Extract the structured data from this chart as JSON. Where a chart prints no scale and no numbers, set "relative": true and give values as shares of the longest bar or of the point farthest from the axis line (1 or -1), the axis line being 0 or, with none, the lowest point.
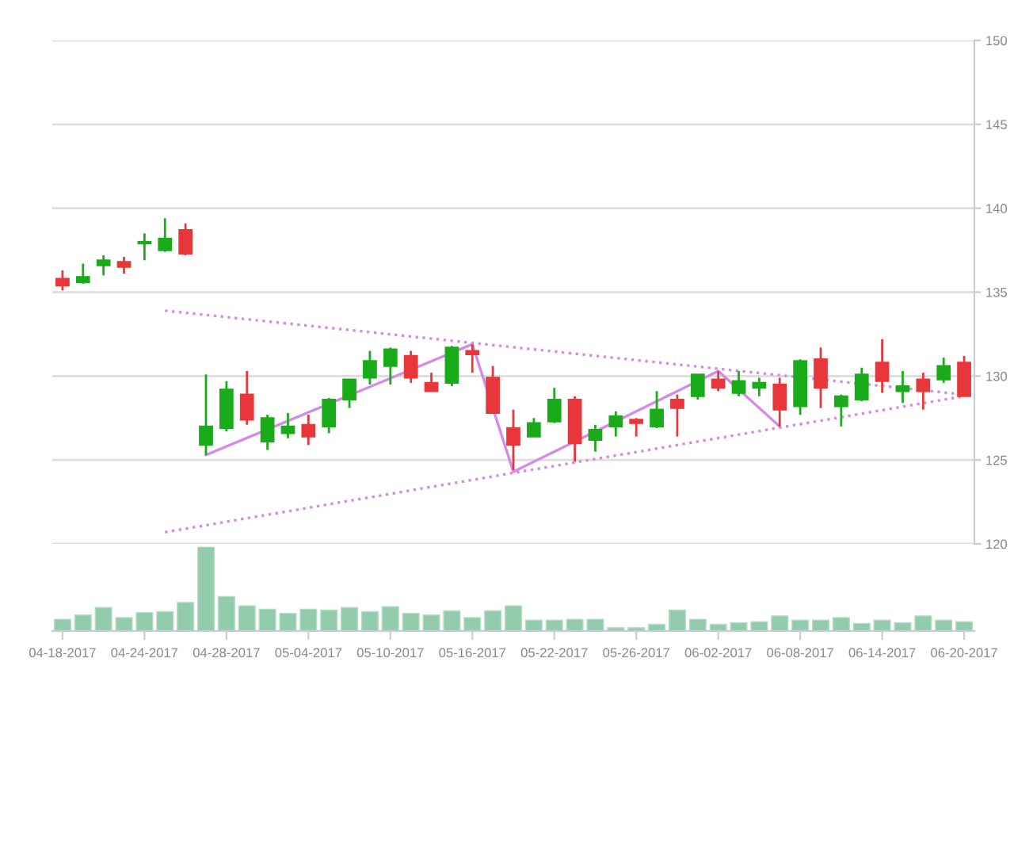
{
  "chart_data": [
    {
      "type": "candlestick",
      "categories": [
        null,
        null,
        null,
        null,
        null,
        null,
        null,
        null,
        null,
        null,
        null,
        null,
        null,
        null,
        null,
        null,
        null,
        null,
        null,
        null,
        null,
        null,
        null,
        null,
        null,
        null,
        null,
        null,
        null,
        null,
        null,
        null,
        null,
        null,
        null,
        null,
        null,
        null,
        null,
        null,
        null,
        null,
        null,
        null,
        null
      ],
      "ohlc": [
        [
          135.8,
          136.3,
          135.1,
          135.4
        ],
        [
          135.6,
          136.7,
          135.5,
          135.9
        ],
        [
          136.6,
          137.2,
          136.0,
          136.9
        ],
        [
          136.8,
          137.1,
          136.1,
          136.5
        ],
        [
          137.9,
          138.5,
          136.9,
          138.0
        ],
        [
          137.5,
          139.4,
          137.4,
          138.2
        ],
        [
          138.7,
          139.1,
          137.2,
          137.3
        ],
        [
          125.9,
          130.1,
          125.3,
          127.0
        ],
        [
          126.9,
          129.7,
          126.7,
          129.2
        ],
        [
          128.9,
          130.3,
          127.1,
          127.4
        ],
        [
          126.1,
          127.7,
          125.6,
          127.5
        ],
        [
          126.6,
          127.8,
          126.3,
          127.0
        ],
        [
          127.1,
          127.7,
          125.9,
          126.4
        ],
        [
          127.0,
          128.7,
          126.6,
          128.6
        ],
        [
          128.6,
          129.8,
          128.1,
          129.8
        ],
        [
          129.9,
          131.5,
          129.5,
          130.9
        ],
        [
          130.6,
          131.7,
          129.5,
          131.6
        ],
        [
          131.2,
          131.5,
          129.6,
          129.9
        ],
        [
          129.6,
          130.2,
          129.1,
          129.1
        ],
        [
          129.6,
          131.8,
          129.4,
          131.7
        ],
        [
          131.5,
          131.9,
          130.2,
          131.3
        ],
        [
          129.9,
          130.6,
          127.8,
          127.8
        ],
        [
          126.9,
          128.0,
          124.4,
          125.9
        ],
        [
          126.4,
          127.5,
          126.4,
          127.2
        ],
        [
          127.3,
          129.3,
          127.2,
          128.6
        ],
        [
          128.6,
          128.8,
          124.9,
          126.0
        ],
        [
          126.2,
          127.1,
          125.5,
          126.8
        ],
        [
          127.0,
          127.9,
          126.4,
          127.6
        ],
        [
          127.4,
          127.5,
          126.4,
          127.2
        ],
        [
          127.0,
          129.1,
          126.9,
          128.0
        ],
        [
          128.6,
          128.9,
          126.4,
          128.1
        ],
        [
          128.8,
          130.1,
          128.6,
          130.1
        ],
        [
          129.8,
          130.3,
          129.1,
          129.3
        ],
        [
          129.0,
          130.3,
          128.8,
          129.7
        ],
        [
          129.3,
          129.9,
          128.8,
          129.6
        ],
        [
          129.5,
          129.9,
          127.0,
          128.0
        ],
        [
          128.2,
          131.0,
          127.7,
          130.9
        ],
        [
          131.0,
          131.7,
          128.1,
          129.3
        ],
        [
          128.2,
          128.9,
          127.0,
          128.8
        ],
        [
          128.6,
          130.5,
          128.5,
          130.1
        ],
        [
          130.8,
          132.2,
          129.0,
          129.7
        ],
        [
          129.1,
          130.3,
          128.4,
          129.4
        ],
        [
          129.8,
          130.2,
          128.0,
          129.1
        ],
        [
          129.8,
          131.1,
          129.6,
          130.6
        ],
        [
          130.8,
          131.2,
          128.8,
          128.8
        ]
      ],
      "colors": [
        "#e8373a",
        "#1aab1a",
        "#1aab1a",
        "#e8373a",
        "#1aab1a",
        "#1aab1a",
        "#e8373a",
        "#1aab1a",
        "#1aab1a",
        "#e8373a",
        "#1aab1a",
        "#1aab1a",
        "#e8373a",
        "#1aab1a",
        "#1aab1a",
        "#1aab1a",
        "#1aab1a",
        "#e8373a",
        "#e8373a",
        "#1aab1a",
        "#e8373a",
        "#e8373a",
        "#e8373a",
        "#1aab1a",
        "#1aab1a",
        "#e8373a",
        "#1aab1a",
        "#1aab1a",
        "#e8373a",
        "#1aab1a",
        "#e8373a",
        "#1aab1a",
        "#e8373a",
        "#1aab1a",
        "#1aab1a",
        "#e8373a",
        "#1aab1a",
        "#e8373a",
        "#1aab1a",
        "#1aab1a",
        "#e8373a",
        "#1aab1a",
        "#e8373a",
        "#1aab1a",
        "#e8373a"
      ],
      "series": [
        {
          "type": "line",
          "values": [
            null,
            null,
            null,
            null,
            null,
            null,
            null,
            125.3,
            null,
            null,
            null,
            null,
            null,
            null,
            null,
            null,
            null,
            null,
            null,
            null,
            131.9,
            null,
            124.3,
            null,
            null,
            null,
            null,
            null,
            null,
            null,
            null,
            null,
            130.3,
            null,
            null,
            127.0,
            null,
            null,
            null,
            null,
            null,
            null,
            null,
            null,
            null
          ],
          "color": "#d48be6",
          "line_style": "solid"
        },
        {
          "type": "line",
          "values": [
            null,
            null,
            null,
            null,
            null,
            133.9,
            null,
            null,
            null,
            null,
            null,
            null,
            null,
            null,
            null,
            null,
            null,
            null,
            null,
            null,
            null,
            null,
            null,
            null,
            null,
            null,
            null,
            null,
            null,
            null,
            null,
            null,
            null,
            null,
            null,
            null,
            null,
            null,
            null,
            null,
            null,
            null,
            null,
            null,
            128.9
          ],
          "color": "#d48be6",
          "line_style": "dotted"
        },
        {
          "type": "line",
          "values": [
            null,
            null,
            null,
            null,
            null,
            120.7,
            null,
            null,
            null,
            null,
            null,
            null,
            null,
            null,
            null,
            null,
            null,
            null,
            null,
            null,
            null,
            null,
            null,
            null,
            null,
            null,
            null,
            null,
            null,
            null,
            null,
            null,
            null,
            null,
            null,
            null,
            null,
            null,
            null,
            null,
            null,
            null,
            null,
            null,
            128.8
          ],
          "color": "#d48be6",
          "line_style": "dotted"
        }
      ],
      "ylim": [
        120,
        150
      ],
      "yticks": [
        120,
        125,
        130,
        135,
        140,
        145,
        150
      ],
      "grid": "y",
      "tick_labels": "y"
    },
    {
      "type": "bar",
      "relative": true,
      "categories": [
        "04-18-2017",
        null,
        null,
        null,
        "04-24-2017",
        null,
        null,
        null,
        "04-28-2017",
        null,
        null,
        null,
        "05-04-2017",
        null,
        null,
        null,
        "05-10-2017",
        null,
        null,
        null,
        "05-16-2017",
        null,
        null,
        null,
        "05-22-2017",
        null,
        null,
        null,
        "05-26-2017",
        null,
        null,
        null,
        "06-02-2017",
        null,
        null,
        null,
        "06-08-2017",
        null,
        null,
        null,
        "06-14-2017",
        null,
        null,
        null,
        "06-20-2017"
      ],
      "values": [
        0.14,
        0.19,
        0.28,
        0.16,
        0.22,
        0.23,
        0.34,
        1,
        0.41,
        0.3,
        0.26,
        0.21,
        0.26,
        0.25,
        0.28,
        0.23,
        0.29,
        0.21,
        0.19,
        0.24,
        0.16,
        0.24,
        0.3,
        0.13,
        0.13,
        0.14,
        0.14,
        0.04,
        0.04,
        0.08,
        0.25,
        0.14,
        0.08,
        0.1,
        0.11,
        0.18,
        0.13,
        0.13,
        0.16,
        0.09,
        0.13,
        0.1,
        0.18,
        0.13,
        0.11
      ],
      "color": "#93cbad",
      "tick_labels": "x"
    }
  ]
}
